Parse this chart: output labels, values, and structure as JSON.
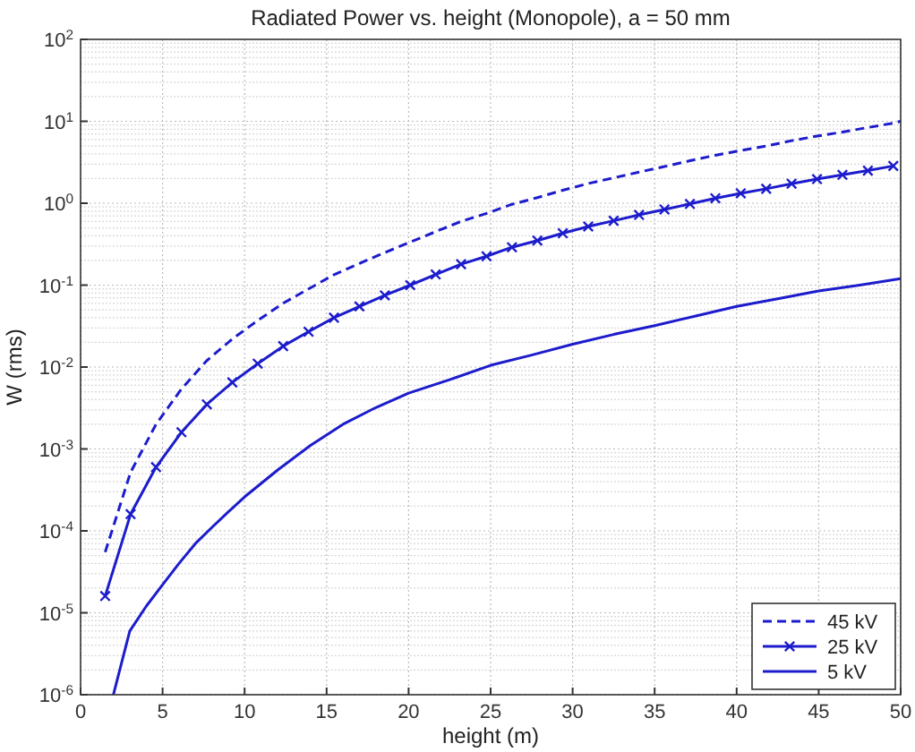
{
  "chart_data": {
    "type": "line",
    "title": "Radiated Power vs. height (Monopole), a = 50 mm",
    "xlabel": "height (m)",
    "ylabel": "W (rms)",
    "log": "y",
    "grid": true,
    "legend": "bottom right",
    "xlim": [
      0,
      50
    ],
    "xticks": [
      0,
      5,
      10,
      15,
      20,
      25,
      30,
      35,
      40,
      45,
      50
    ],
    "ylim": [
      1e-06,
      100
    ],
    "yticks": [
      {
        "value": 1e-06,
        "label": "10$^{-6}$"
      },
      {
        "value": 1e-05,
        "label": "10$^{-5}$"
      },
      {
        "value": 0.0001,
        "label": "10$^{-4}$"
      },
      {
        "value": 0.001,
        "label": "10$^{-3}$"
      },
      {
        "value": 0.01,
        "label": "10$^{-2}$"
      },
      {
        "value": 0.1,
        "label": "10$^{-1}$"
      },
      {
        "value": 1,
        "label": "10$^{0}$"
      },
      {
        "value": 10,
        "label": "10$^{1}$"
      },
      {
        "value": 100,
        "label": "10$^{2}$"
      }
    ],
    "series": [
      {
        "name": "45 kV",
        "color": "#1c1ccc",
        "line_style": "dashed",
        "marker": "none",
        "x": [
          1.5,
          3.05,
          4.6,
          6.15,
          7.7,
          9.25,
          10.8,
          12.35,
          13.9,
          15.45,
          17,
          18.55,
          20.1,
          21.65,
          23.2,
          24.75,
          26.3,
          27.85,
          29.4,
          30.95,
          32.5,
          34.05,
          35.6,
          37.15,
          38.7,
          40.25,
          41.8,
          43.35,
          44.9,
          46.45,
          48,
          49.55,
          50
        ],
        "values": [
          5.5e-05,
          0.00052,
          0.002,
          0.0054,
          0.012,
          0.022,
          0.037,
          0.06,
          0.09,
          0.134,
          0.184,
          0.25,
          0.335,
          0.45,
          0.6,
          0.75,
          0.97,
          1.17,
          1.44,
          1.74,
          2.04,
          2.4,
          2.8,
          3.3,
          3.85,
          4.4,
          5,
          5.8,
          6.6,
          7.4,
          8.4,
          9.5,
          10
        ]
      },
      {
        "name": "25 kV",
        "color": "#1c1ccc",
        "line_style": "solid",
        "marker": "cross",
        "x": [
          1.5,
          3.05,
          4.6,
          6.15,
          7.7,
          9.25,
          10.8,
          12.35,
          13.9,
          15.45,
          17,
          18.55,
          20.1,
          21.65,
          23.2,
          24.75,
          26.3,
          27.85,
          29.4,
          30.95,
          32.5,
          34.05,
          35.6,
          37.15,
          38.7,
          40.25,
          41.8,
          43.35,
          44.9,
          46.45,
          48,
          49.55
        ],
        "values": [
          1.6e-05,
          0.00016,
          0.0006,
          0.0016,
          0.0035,
          0.0065,
          0.011,
          0.018,
          0.027,
          0.04,
          0.055,
          0.075,
          0.1,
          0.135,
          0.18,
          0.225,
          0.29,
          0.35,
          0.43,
          0.52,
          0.61,
          0.72,
          0.84,
          0.98,
          1.15,
          1.32,
          1.5,
          1.73,
          1.97,
          2.22,
          2.5,
          2.85
        ]
      },
      {
        "name": "5 kV",
        "color": "#1c1ccc",
        "line_style": "solid",
        "marker": "none",
        "x": [
          2,
          3,
          4,
          5,
          6,
          7,
          8,
          9,
          10,
          12,
          14,
          16,
          18,
          20,
          22.5,
          25,
          27.5,
          30,
          32.5,
          35,
          37.5,
          40,
          42.5,
          45,
          47.5,
          50
        ],
        "values": [
          1e-06,
          6e-06,
          1.2e-05,
          2.2e-05,
          4e-05,
          7e-05,
          0.00011,
          0.00017,
          0.00026,
          0.00055,
          0.0011,
          0.002,
          0.0032,
          0.0048,
          0.007,
          0.0105,
          0.014,
          0.019,
          0.025,
          0.032,
          0.042,
          0.055,
          0.068,
          0.085,
          0.1,
          0.12
        ]
      }
    ]
  }
}
